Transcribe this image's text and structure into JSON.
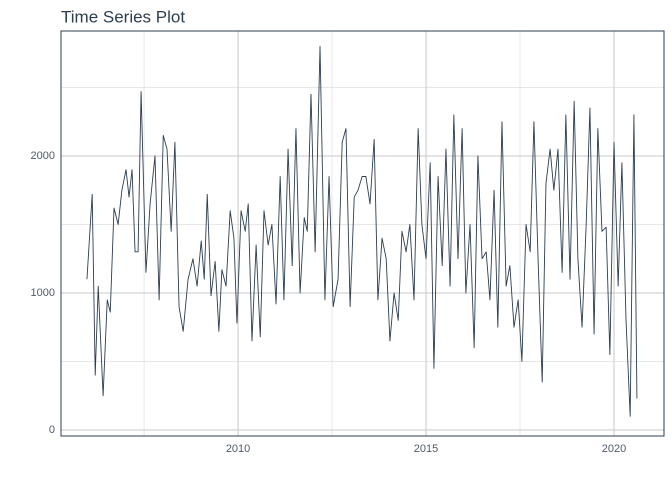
{
  "chart_data": {
    "type": "line",
    "title": "Time Series Plot",
    "x": [
      2005.98,
      2006.12,
      2006.2,
      2006.28,
      2006.41,
      2006.52,
      2006.6,
      2006.7,
      2006.81,
      2006.91,
      2007.02,
      2007.1,
      2007.18,
      2007.26,
      2007.34,
      2007.42,
      2007.55,
      2007.66,
      2007.79,
      2007.9,
      2008.01,
      2008.11,
      2008.22,
      2008.32,
      2008.43,
      2008.54,
      2008.67,
      2008.8,
      2008.91,
      2009.02,
      2009.1,
      2009.18,
      2009.28,
      2009.39,
      2009.49,
      2009.57,
      2009.68,
      2009.79,
      2009.89,
      2009.97,
      2010.08,
      2010.19,
      2010.27,
      2010.37,
      2010.48,
      2010.59,
      2010.69,
      2010.8,
      2010.9,
      2011.01,
      2011.12,
      2011.22,
      2011.33,
      2011.44,
      2011.54,
      2011.65,
      2011.76,
      2011.84,
      2011.94,
      2012.05,
      2012.18,
      2012.31,
      2012.42,
      2012.53,
      2012.66,
      2012.77,
      2012.87,
      2012.98,
      2013.09,
      2013.19,
      2013.3,
      2013.4,
      2013.51,
      2013.62,
      2013.72,
      2013.83,
      2013.94,
      2014.04,
      2014.15,
      2014.26,
      2014.36,
      2014.47,
      2014.57,
      2014.68,
      2014.79,
      2014.89,
      2015.0,
      2015.11,
      2015.21,
      2015.32,
      2015.43,
      2015.53,
      2015.64,
      2015.74,
      2015.85,
      2015.96,
      2016.06,
      2016.17,
      2016.28,
      2016.38,
      2016.49,
      2016.6,
      2016.7,
      2016.81,
      2016.91,
      2017.02,
      2017.13,
      2017.23,
      2017.34,
      2017.45,
      2017.55,
      2017.66,
      2017.77,
      2017.87,
      2017.98,
      2018.09,
      2018.19,
      2018.3,
      2018.4,
      2018.51,
      2018.62,
      2018.72,
      2018.83,
      2018.94,
      2019.04,
      2019.15,
      2019.26,
      2019.36,
      2019.47,
      2019.57,
      2019.68,
      2019.79,
      2019.89,
      2020.0,
      2020.11,
      2020.21,
      2020.32,
      2020.43,
      2020.53,
      2020.61
    ],
    "values": [
      1100,
      1720,
      400,
      1050,
      250,
      950,
      860,
      1620,
      1500,
      1750,
      1900,
      1700,
      1900,
      1300,
      1300,
      2470,
      1150,
      1650,
      2000,
      950,
      2150,
      2050,
      1450,
      2100,
      900,
      720,
      1100,
      1250,
      1050,
      1380,
      1100,
      1720,
      980,
      1230,
      720,
      1170,
      1050,
      1600,
      1400,
      780,
      1600,
      1450,
      1650,
      650,
      1350,
      680,
      1600,
      1350,
      1500,
      920,
      1850,
      950,
      2050,
      1200,
      2200,
      1000,
      1550,
      1450,
      2450,
      1300,
      2800,
      950,
      1850,
      900,
      1100,
      2100,
      2200,
      900,
      1700,
      1750,
      1850,
      1850,
      1650,
      2120,
      950,
      1400,
      1250,
      650,
      1000,
      800,
      1450,
      1300,
      1500,
      950,
      2200,
      1500,
      1250,
      1950,
      450,
      1850,
      1200,
      2050,
      1050,
      2300,
      1250,
      2200,
      1000,
      1500,
      600,
      2000,
      1250,
      1300,
      950,
      1750,
      750,
      2250,
      1050,
      1200,
      750,
      950,
      500,
      1500,
      1300,
      2250,
      1250,
      350,
      1800,
      2050,
      1750,
      2050,
      1150,
      2300,
      1100,
      2400,
      1250,
      750,
      1500,
      2350,
      700,
      2200,
      1450,
      1480,
      550,
      2100,
      1050,
      1950,
      800,
      100,
      2300,
      230
    ],
    "color": "#2c3e50",
    "xlim": [
      2005.29,
      2021.33
    ],
    "ylim": [
      -44,
      2912
    ],
    "xticks": [
      2010,
      2015,
      2020
    ],
    "yticks": [
      0,
      1000,
      2000
    ],
    "minor_xticks": [
      2007.5,
      2012.5,
      2017.5
    ],
    "minor_yticks": [
      500,
      1500,
      2500
    ],
    "grid": true
  }
}
